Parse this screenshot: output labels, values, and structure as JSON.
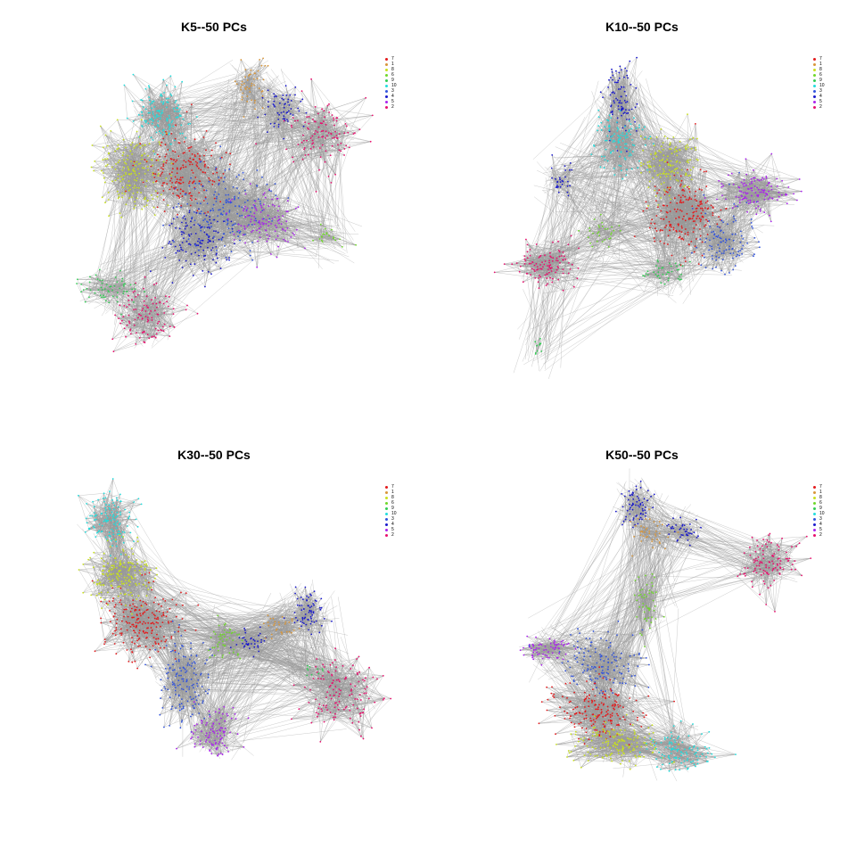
{
  "chart_data": [
    {
      "type": "network",
      "title": "K5--50 PCs",
      "legend_placement": "top-right",
      "edge_color": "#999999",
      "legend": [
        {
          "label": "7",
          "color": "#e41a1c"
        },
        {
          "label": "1",
          "color": "#d8963a"
        },
        {
          "label": "8",
          "color": "#c8e01e"
        },
        {
          "label": "6",
          "color": "#6fd82a"
        },
        {
          "label": "9",
          "color": "#33cc55"
        },
        {
          "label": "10",
          "color": "#22dddd"
        },
        {
          "label": "3",
          "color": "#3355dd"
        },
        {
          "label": "4",
          "color": "#1a1acc"
        },
        {
          "label": "5",
          "color": "#aa22ee"
        },
        {
          "label": "2",
          "color": "#e8106e"
        }
      ],
      "clusters": [
        {
          "label": "10",
          "cx": 0.28,
          "cy": 0.18,
          "sx": 0.05,
          "sy": 0.05,
          "n": 140
        },
        {
          "label": "8",
          "cx": 0.18,
          "cy": 0.38,
          "sx": 0.06,
          "sy": 0.07,
          "n": 180
        },
        {
          "label": "7",
          "cx": 0.36,
          "cy": 0.38,
          "sx": 0.07,
          "sy": 0.07,
          "n": 200
        },
        {
          "label": "3",
          "cx": 0.5,
          "cy": 0.5,
          "sx": 0.08,
          "sy": 0.07,
          "n": 180
        },
        {
          "label": "4",
          "cx": 0.4,
          "cy": 0.62,
          "sx": 0.06,
          "sy": 0.06,
          "n": 130
        },
        {
          "label": "5",
          "cx": 0.62,
          "cy": 0.55,
          "sx": 0.06,
          "sy": 0.05,
          "n": 120
        },
        {
          "label": "1",
          "cx": 0.58,
          "cy": 0.08,
          "sx": 0.03,
          "sy": 0.05,
          "n": 50
        },
        {
          "label": "4",
          "cx": 0.68,
          "cy": 0.16,
          "sx": 0.04,
          "sy": 0.04,
          "n": 60
        },
        {
          "label": "2",
          "cx": 0.82,
          "cy": 0.25,
          "sx": 0.06,
          "sy": 0.06,
          "n": 110
        },
        {
          "label": "9",
          "cx": 0.1,
          "cy": 0.78,
          "sx": 0.05,
          "sy": 0.03,
          "n": 60
        },
        {
          "label": "2",
          "cx": 0.22,
          "cy": 0.88,
          "sx": 0.06,
          "sy": 0.05,
          "n": 110
        },
        {
          "label": "6",
          "cx": 0.84,
          "cy": 0.6,
          "sx": 0.04,
          "sy": 0.02,
          "n": 20
        }
      ]
    },
    {
      "type": "network",
      "title": "K10--50 PCs",
      "legend_placement": "top-right",
      "edge_color": "#999999",
      "legend": [
        {
          "label": "7",
          "color": "#e41a1c"
        },
        {
          "label": "1",
          "color": "#d8963a"
        },
        {
          "label": "8",
          "color": "#c8e01e"
        },
        {
          "label": "6",
          "color": "#6fd82a"
        },
        {
          "label": "9",
          "color": "#33cc55"
        },
        {
          "label": "10",
          "color": "#22dddd"
        },
        {
          "label": "3",
          "color": "#3355dd"
        },
        {
          "label": "4",
          "color": "#1a1acc"
        },
        {
          "label": "5",
          "color": "#aa22ee"
        },
        {
          "label": "2",
          "color": "#e8106e"
        }
      ],
      "clusters": [
        {
          "label": "4",
          "cx": 0.38,
          "cy": 0.12,
          "sx": 0.03,
          "sy": 0.07,
          "n": 90
        },
        {
          "label": "10",
          "cx": 0.38,
          "cy": 0.28,
          "sx": 0.05,
          "sy": 0.05,
          "n": 110
        },
        {
          "label": "4",
          "cx": 0.17,
          "cy": 0.4,
          "sx": 0.02,
          "sy": 0.03,
          "n": 30
        },
        {
          "label": "8",
          "cx": 0.55,
          "cy": 0.35,
          "sx": 0.05,
          "sy": 0.06,
          "n": 140
        },
        {
          "label": "7",
          "cx": 0.6,
          "cy": 0.52,
          "sx": 0.06,
          "sy": 0.07,
          "n": 200
        },
        {
          "label": "3",
          "cx": 0.74,
          "cy": 0.62,
          "sx": 0.05,
          "sy": 0.06,
          "n": 110
        },
        {
          "label": "5",
          "cx": 0.86,
          "cy": 0.45,
          "sx": 0.06,
          "sy": 0.04,
          "n": 130
        },
        {
          "label": "2",
          "cx": 0.12,
          "cy": 0.7,
          "sx": 0.06,
          "sy": 0.04,
          "n": 110
        },
        {
          "label": "9",
          "cx": 0.55,
          "cy": 0.72,
          "sx": 0.05,
          "sy": 0.02,
          "n": 40
        },
        {
          "label": "6",
          "cx": 0.32,
          "cy": 0.58,
          "sx": 0.04,
          "sy": 0.04,
          "n": 30
        },
        {
          "label": "9",
          "cx": 0.09,
          "cy": 0.99,
          "sx": 0.01,
          "sy": 0.02,
          "n": 10
        }
      ]
    },
    {
      "type": "network",
      "title": "K30--50 PCs",
      "legend_placement": "top-right",
      "edge_color": "#999999",
      "legend": [
        {
          "label": "7",
          "color": "#e41a1c"
        },
        {
          "label": "1",
          "color": "#d8963a"
        },
        {
          "label": "8",
          "color": "#c8e01e"
        },
        {
          "label": "6",
          "color": "#6fd82a"
        },
        {
          "label": "9",
          "color": "#33cc55"
        },
        {
          "label": "10",
          "color": "#22dddd"
        },
        {
          "label": "3",
          "color": "#3355dd"
        },
        {
          "label": "4",
          "color": "#1a1acc"
        },
        {
          "label": "5",
          "color": "#aa22ee"
        },
        {
          "label": "2",
          "color": "#e8106e"
        }
      ],
      "clusters": [
        {
          "label": "10",
          "cx": 0.08,
          "cy": 0.1,
          "sx": 0.04,
          "sy": 0.05,
          "n": 120
        },
        {
          "label": "8",
          "cx": 0.12,
          "cy": 0.3,
          "sx": 0.06,
          "sy": 0.06,
          "n": 170
        },
        {
          "label": "7",
          "cx": 0.2,
          "cy": 0.48,
          "sx": 0.07,
          "sy": 0.07,
          "n": 210
        },
        {
          "label": "3",
          "cx": 0.34,
          "cy": 0.68,
          "sx": 0.05,
          "sy": 0.08,
          "n": 150
        },
        {
          "label": "5",
          "cx": 0.45,
          "cy": 0.88,
          "sx": 0.04,
          "sy": 0.05,
          "n": 100
        },
        {
          "label": "6",
          "cx": 0.48,
          "cy": 0.54,
          "sx": 0.03,
          "sy": 0.04,
          "n": 50
        },
        {
          "label": "4",
          "cx": 0.57,
          "cy": 0.55,
          "sx": 0.03,
          "sy": 0.02,
          "n": 40
        },
        {
          "label": "1",
          "cx": 0.67,
          "cy": 0.5,
          "sx": 0.03,
          "sy": 0.03,
          "n": 30
        },
        {
          "label": "4",
          "cx": 0.77,
          "cy": 0.44,
          "sx": 0.03,
          "sy": 0.04,
          "n": 70
        },
        {
          "label": "2",
          "cx": 0.88,
          "cy": 0.73,
          "sx": 0.06,
          "sy": 0.07,
          "n": 130
        },
        {
          "label": "9",
          "cx": 0.78,
          "cy": 0.65,
          "sx": 0.02,
          "sy": 0.01,
          "n": 10
        }
      ]
    },
    {
      "type": "network",
      "title": "K50--50 PCs",
      "legend_placement": "top-right",
      "edge_color": "#999999",
      "legend": [
        {
          "label": "7",
          "color": "#e41a1c"
        },
        {
          "label": "1",
          "color": "#d8963a"
        },
        {
          "label": "8",
          "color": "#c8e01e"
        },
        {
          "label": "6",
          "color": "#6fd82a"
        },
        {
          "label": "9",
          "color": "#33cc55"
        },
        {
          "label": "10",
          "color": "#22dddd"
        },
        {
          "label": "3",
          "color": "#3355dd"
        },
        {
          "label": "4",
          "color": "#1a1acc"
        },
        {
          "label": "5",
          "color": "#aa22ee"
        },
        {
          "label": "2",
          "color": "#e8106e"
        }
      ],
      "clusters": [
        {
          "label": "4",
          "cx": 0.43,
          "cy": 0.05,
          "sx": 0.03,
          "sy": 0.04,
          "n": 70
        },
        {
          "label": "1",
          "cx": 0.48,
          "cy": 0.15,
          "sx": 0.04,
          "sy": 0.03,
          "n": 40
        },
        {
          "label": "4",
          "cx": 0.6,
          "cy": 0.15,
          "sx": 0.03,
          "sy": 0.02,
          "n": 40
        },
        {
          "label": "2",
          "cx": 0.9,
          "cy": 0.26,
          "sx": 0.05,
          "sy": 0.05,
          "n": 110
        },
        {
          "label": "6",
          "cx": 0.47,
          "cy": 0.4,
          "sx": 0.02,
          "sy": 0.06,
          "n": 50
        },
        {
          "label": "5",
          "cx": 0.12,
          "cy": 0.57,
          "sx": 0.05,
          "sy": 0.02,
          "n": 70
        },
        {
          "label": "3",
          "cx": 0.32,
          "cy": 0.62,
          "sx": 0.07,
          "sy": 0.06,
          "n": 140
        },
        {
          "label": "7",
          "cx": 0.3,
          "cy": 0.8,
          "sx": 0.08,
          "sy": 0.05,
          "n": 190
        },
        {
          "label": "8",
          "cx": 0.36,
          "cy": 0.92,
          "sx": 0.08,
          "sy": 0.04,
          "n": 160
        },
        {
          "label": "10",
          "cx": 0.58,
          "cy": 0.94,
          "sx": 0.06,
          "sy": 0.04,
          "n": 110
        }
      ]
    }
  ]
}
